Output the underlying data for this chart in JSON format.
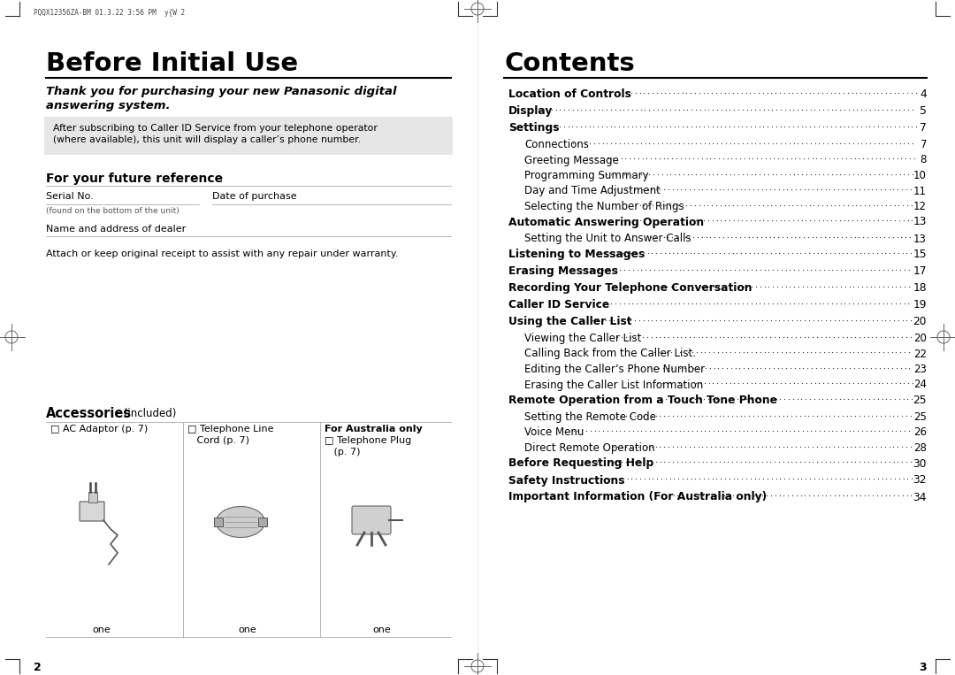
{
  "bg_color": "#ffffff",
  "left_page": {
    "header_text": "PQQX12356ZA-BM 01.3.22 3:56 PM  y{W 2",
    "title": "Before Initial Use",
    "subtitle_line1": "Thank you for purchasing your new Panasonic digital",
    "subtitle_line2": "answering system.",
    "box_text_line1": "After subscribing to Caller ID Service from your telephone operator",
    "box_text_line2": "(where available), this unit will display a caller’s phone number.",
    "section_ref": "For your future reference",
    "serial_label": "Serial No.",
    "date_label": "Date of purchase",
    "found_text": "(found on the bottom of the unit)",
    "name_label": "Name and address of dealer",
    "attach_text": "Attach or keep original receipt to assist with any repair under warranty.",
    "accessories_title": "Accessories",
    "accessories_subtitle": " (included)",
    "col1_checkbox": "□ AC Adaptor (p. 7)",
    "col2_line1": "□ Telephone Line",
    "col2_line2": "   Cord (p. 7)",
    "col3_title": "For Australia only",
    "col3_line1": "□ Telephone Plug",
    "col3_line2": "   (p. 7)",
    "col1_qty": "one",
    "col2_qty": "one",
    "col3_qty": "one",
    "page_num": "2"
  },
  "right_page": {
    "title": "Contents",
    "entries": [
      {
        "text": "Location of Controls",
        "bold": true,
        "indent": 0,
        "page": "4"
      },
      {
        "text": "Display",
        "bold": true,
        "indent": 0,
        "page": "5"
      },
      {
        "text": "Settings",
        "bold": true,
        "indent": 0,
        "page": "7"
      },
      {
        "text": "Connections",
        "bold": false,
        "indent": 1,
        "page": "7"
      },
      {
        "text": "Greeting Message",
        "bold": false,
        "indent": 1,
        "page": "8"
      },
      {
        "text": "Programming Summary",
        "bold": false,
        "indent": 1,
        "page": "10"
      },
      {
        "text": "Day and Time Adjustment",
        "bold": false,
        "indent": 1,
        "page": "11"
      },
      {
        "text": "Selecting the Number of Rings",
        "bold": false,
        "indent": 1,
        "page": "12"
      },
      {
        "text": "Automatic Answering Operation",
        "bold": true,
        "indent": 0,
        "page": "13"
      },
      {
        "text": "Setting the Unit to Answer Calls",
        "bold": false,
        "indent": 1,
        "page": "13"
      },
      {
        "text": "Listening to Messages",
        "bold": true,
        "indent": 0,
        "page": "15"
      },
      {
        "text": "Erasing Messages",
        "bold": true,
        "indent": 0,
        "page": "17"
      },
      {
        "text": "Recording Your Telephone Conversation",
        "bold": true,
        "indent": 0,
        "page": "18"
      },
      {
        "text": "Caller ID Service",
        "bold": true,
        "indent": 0,
        "page": "19"
      },
      {
        "text": "Using the Caller List",
        "bold": true,
        "indent": 0,
        "page": "20"
      },
      {
        "text": "Viewing the Caller List",
        "bold": false,
        "indent": 1,
        "page": "20"
      },
      {
        "text": "Calling Back from the Caller List.",
        "bold": false,
        "indent": 1,
        "page": "22"
      },
      {
        "text": "Editing the Caller’s Phone Number",
        "bold": false,
        "indent": 1,
        "page": "23"
      },
      {
        "text": "Erasing the Caller List Information",
        "bold": false,
        "indent": 1,
        "page": "24"
      },
      {
        "text": "Remote Operation from a Touch Tone Phone",
        "bold": true,
        "indent": 0,
        "page": "25"
      },
      {
        "text": "Setting the Remote Code",
        "bold": false,
        "indent": 1,
        "page": "25"
      },
      {
        "text": "Voice Menu",
        "bold": false,
        "indent": 1,
        "page": "26"
      },
      {
        "text": "Direct Remote Operation",
        "bold": false,
        "indent": 1,
        "page": "28"
      },
      {
        "text": "Before Requesting Help",
        "bold": true,
        "indent": 0,
        "page": "30"
      },
      {
        "text": "Safety Instructions",
        "bold": true,
        "indent": 0,
        "page": "32"
      },
      {
        "text": "Important Information (For Australia only)",
        "bold": true,
        "indent": 0,
        "page": "34"
      }
    ],
    "page_num": "3"
  }
}
